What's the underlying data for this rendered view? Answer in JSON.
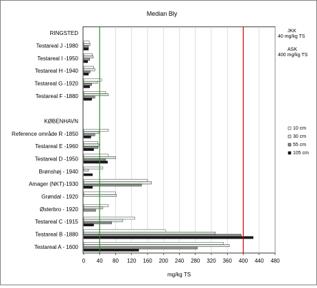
{
  "chart_data": {
    "type": "bar",
    "orientation": "horizontal",
    "title": "Median  Bly",
    "xlabel": "mg/kg TS",
    "ylabel": "",
    "xlim": [
      0,
      480
    ],
    "xticks": [
      0,
      40,
      80,
      120,
      160,
      200,
      240,
      280,
      320,
      360,
      400,
      440,
      480
    ],
    "grid": "vertical",
    "legend_position": "right",
    "categories": [
      "RINGSTED",
      "Testareal J -1980",
      "Testareal I -1950",
      "Testareal H -1940",
      "Testareal G -1920",
      "Testareal F -1880",
      "",
      "KØBENHAVN",
      "Reference område R -1850",
      "Testareal E -1960",
      "Testareal D -1950",
      "Brønshøj  - 1940",
      "Amager (NKT)-1930",
      "Grøndal  - 1920",
      "Østerbro - 1920",
      "Testareal C -1915",
      "Testareal B -1880",
      "Testareal A - 1600"
    ],
    "series": [
      {
        "name": "10 cm",
        "color": "#ffffff",
        "values": [
          null,
          14,
          22,
          25,
          45,
          55,
          null,
          null,
          62,
          35,
          62,
          48,
          160,
          80,
          62,
          128,
          205,
          350
        ]
      },
      {
        "name": "30 cm",
        "color": "#d9ead9",
        "values": [
          null,
          16,
          24,
          28,
          35,
          62,
          null,
          null,
          38,
          38,
          80,
          12,
          170,
          82,
          48,
          98,
          330,
          365
        ]
      },
      {
        "name": "55 cm",
        "color": "#909090",
        "values": [
          null,
          12,
          15,
          16,
          20,
          28,
          null,
          null,
          28,
          36,
          55,
          null,
          145,
          null,
          30,
          70,
          395,
          285
        ]
      },
      {
        "name": "105 cm",
        "color": "#1a1a1a",
        "values": [
          null,
          12,
          10,
          12,
          15,
          20,
          null,
          null,
          18,
          25,
          60,
          22,
          22,
          null,
          null,
          25,
          425,
          138
        ]
      }
    ],
    "reference_lines": [
      {
        "value": 40,
        "color": "#2e8b2e",
        "label_line1": "JKK",
        "label_line2": "40 mg/kg TS"
      },
      {
        "value": 400,
        "color": "#cc0000",
        "label_line1": "ASK",
        "label_line2": "400 mg/kg TS"
      }
    ]
  }
}
